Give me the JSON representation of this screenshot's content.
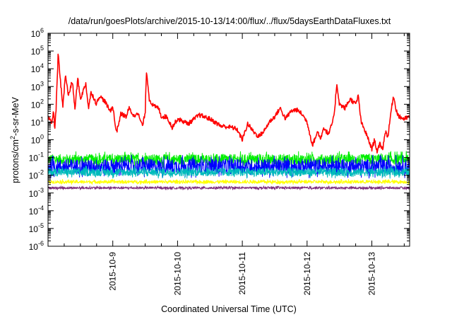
{
  "chart_data": {
    "type": "line",
    "title": "/data/run/goesPlots/archive/2015-10-13/14:00/flux/../flux/5daysEarthDataFluxes.txt",
    "xlabel": "Coordinated Universal Time (UTC)",
    "ylabel": {
      "prefix": "protons/cm",
      "sup": "2",
      "suffix": "-s-sr-MeV"
    },
    "yscale": "log",
    "ylim": [
      1e-06,
      1000000.0
    ],
    "xlim": [
      "2015-10-08 00:00",
      "2015-10-13 14:00"
    ],
    "grid": false,
    "legend": "none",
    "x_ticks": [
      "2015-10-9",
      "2015-10-10",
      "2015-10-11",
      "2015-10-12",
      "2015-10-13"
    ],
    "y_ticks": [
      {
        "base": "10",
        "exp": "-6"
      },
      {
        "base": "10",
        "exp": "-5"
      },
      {
        "base": "10",
        "exp": "-4"
      },
      {
        "base": "10",
        "exp": "-3"
      },
      {
        "base": "10",
        "exp": "-2"
      },
      {
        "base": "10",
        "exp": "-1"
      },
      {
        "base": "10",
        "exp": "0"
      },
      {
        "base": "10",
        "exp": "1"
      },
      {
        "base": "10",
        "exp": "2"
      },
      {
        "base": "10",
        "exp": "3"
      },
      {
        "base": "10",
        "exp": "4"
      },
      {
        "base": "10",
        "exp": "5"
      },
      {
        "base": "10",
        "exp": "6"
      }
    ],
    "series": [
      {
        "color": "#ff0000",
        "noise": "low",
        "points": [
          [
            "2015-10-08 00:00",
            20
          ],
          [
            "2015-10-08 01:30",
            8
          ],
          [
            "2015-10-08 02:00",
            50
          ],
          [
            "2015-10-08 02:30",
            4
          ],
          [
            "2015-10-08 03:00",
            60
          ],
          [
            "2015-10-08 03:45",
            70000
          ],
          [
            "2015-10-08 04:30",
            3000
          ],
          [
            "2015-10-08 05:30",
            80
          ],
          [
            "2015-10-08 06:30",
            5000
          ],
          [
            "2015-10-08 07:30",
            300
          ],
          [
            "2015-10-08 09:00",
            2000
          ],
          [
            "2015-10-08 10:00",
            50
          ],
          [
            "2015-10-08 11:00",
            3000
          ],
          [
            "2015-10-08 12:00",
            200
          ],
          [
            "2015-10-08 14:00",
            1500
          ],
          [
            "2015-10-08 15:00",
            60
          ],
          [
            "2015-10-08 16:00",
            500
          ],
          [
            "2015-10-08 18:00",
            100
          ],
          [
            "2015-10-08 19:00",
            300
          ],
          [
            "2015-10-08 21:00",
            150
          ],
          [
            "2015-10-08 23:00",
            40
          ],
          [
            "2015-10-09 00:00",
            80
          ],
          [
            "2015-10-09 01:00",
            5
          ],
          [
            "2015-10-09 01:30",
            3
          ],
          [
            "2015-10-09 03:00",
            30
          ],
          [
            "2015-10-09 05:00",
            20
          ],
          [
            "2015-10-09 06:00",
            60
          ],
          [
            "2015-10-09 08:00",
            20
          ],
          [
            "2015-10-09 09:00",
            40
          ],
          [
            "2015-10-09 11:00",
            6
          ],
          [
            "2015-10-09 12:00",
            30
          ],
          [
            "2015-10-09 12:30",
            9000
          ],
          [
            "2015-10-09 13:30",
            200
          ],
          [
            "2015-10-09 15:00",
            80
          ],
          [
            "2015-10-09 17:00",
            60
          ],
          [
            "2015-10-09 18:00",
            20
          ],
          [
            "2015-10-09 20:00",
            20
          ],
          [
            "2015-10-09 22:00",
            5
          ],
          [
            "2015-10-10 00:00",
            15
          ],
          [
            "2015-10-10 04:00",
            8
          ],
          [
            "2015-10-10 08:00",
            25
          ],
          [
            "2015-10-10 12:00",
            15
          ],
          [
            "2015-10-10 16:00",
            6
          ],
          [
            "2015-10-10 20:00",
            5
          ],
          [
            "2015-10-10 22:00",
            4
          ],
          [
            "2015-10-11 00:00",
            1
          ],
          [
            "2015-10-11 02:00",
            8
          ],
          [
            "2015-10-11 04:00",
            3
          ],
          [
            "2015-10-11 06:00",
            1.5
          ],
          [
            "2015-10-11 08:00",
            3
          ],
          [
            "2015-10-11 10:00",
            10
          ],
          [
            "2015-10-11 12:00",
            20
          ],
          [
            "2015-10-11 14:00",
            60
          ],
          [
            "2015-10-11 16:00",
            15
          ],
          [
            "2015-10-11 18:00",
            40
          ],
          [
            "2015-10-11 20:00",
            50
          ],
          [
            "2015-10-11 22:00",
            30
          ],
          [
            "2015-10-12 00:00",
            10
          ],
          [
            "2015-10-12 02:00",
            0.5
          ],
          [
            "2015-10-12 04:00",
            3
          ],
          [
            "2015-10-12 05:00",
            1
          ],
          [
            "2015-10-12 06:00",
            5
          ],
          [
            "2015-10-12 08:00",
            2
          ],
          [
            "2015-10-12 10:00",
            20
          ],
          [
            "2015-10-12 11:00",
            1500
          ],
          [
            "2015-10-12 12:00",
            100
          ],
          [
            "2015-10-12 14:00",
            60
          ],
          [
            "2015-10-12 16:00",
            200
          ],
          [
            "2015-10-12 18:00",
            100
          ],
          [
            "2015-10-12 19:00",
            300
          ],
          [
            "2015-10-12 20:00",
            10
          ],
          [
            "2015-10-12 22:00",
            2
          ],
          [
            "2015-10-13 00:00",
            0.3
          ],
          [
            "2015-10-13 01:00",
            1
          ],
          [
            "2015-10-13 02:00",
            0.2
          ],
          [
            "2015-10-13 03:00",
            0.6
          ],
          [
            "2015-10-13 04:00",
            0.3
          ],
          [
            "2015-10-13 05:00",
            3
          ],
          [
            "2015-10-13 06:00",
            1.5
          ],
          [
            "2015-10-13 07:00",
            30
          ],
          [
            "2015-10-13 08:00",
            300
          ],
          [
            "2015-10-13 09:00",
            50
          ],
          [
            "2015-10-13 10:00",
            20
          ],
          [
            "2015-10-13 12:00",
            15
          ],
          [
            "2015-10-13 14:00",
            20
          ]
        ]
      },
      {
        "color": "#00ee00",
        "band": [
          0.04,
          0.15
        ],
        "noise": "high"
      },
      {
        "color": "#0000ff",
        "band": [
          0.012,
          0.08
        ],
        "noise": "high"
      },
      {
        "color": "#00bbbb",
        "band": [
          0.009,
          0.025
        ],
        "noise": "high"
      },
      {
        "color": "#ffff00",
        "band": [
          0.003,
          0.006
        ],
        "noise": "medium"
      },
      {
        "color": "#7f2f7f",
        "band": [
          0.0015,
          0.0025
        ],
        "noise": "medium"
      }
    ]
  }
}
